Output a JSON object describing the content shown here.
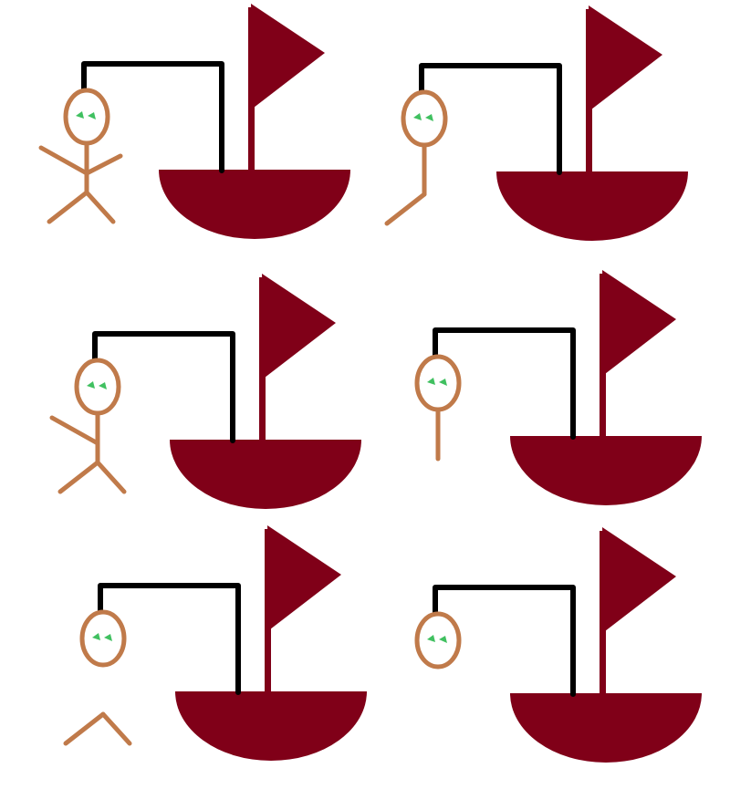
{
  "colors": {
    "background": "#ffffff",
    "boat": "#800018",
    "gallows": "#000000",
    "figure": "#c07a4a",
    "eyes": "#40c060"
  },
  "scenes": [
    {
      "name": "scene-1",
      "parts": [
        "head",
        "torso",
        "left-arm",
        "right-arm",
        "left-leg",
        "right-leg"
      ]
    },
    {
      "name": "scene-2",
      "parts": [
        "head",
        "torso",
        "left-leg"
      ]
    },
    {
      "name": "scene-3",
      "parts": [
        "head",
        "torso",
        "left-arm",
        "left-leg",
        "right-leg"
      ]
    },
    {
      "name": "scene-4",
      "parts": [
        "head",
        "torso"
      ]
    },
    {
      "name": "scene-5",
      "parts": [
        "head",
        "left-leg",
        "right-leg"
      ]
    },
    {
      "name": "scene-6",
      "parts": [
        "head"
      ]
    }
  ]
}
